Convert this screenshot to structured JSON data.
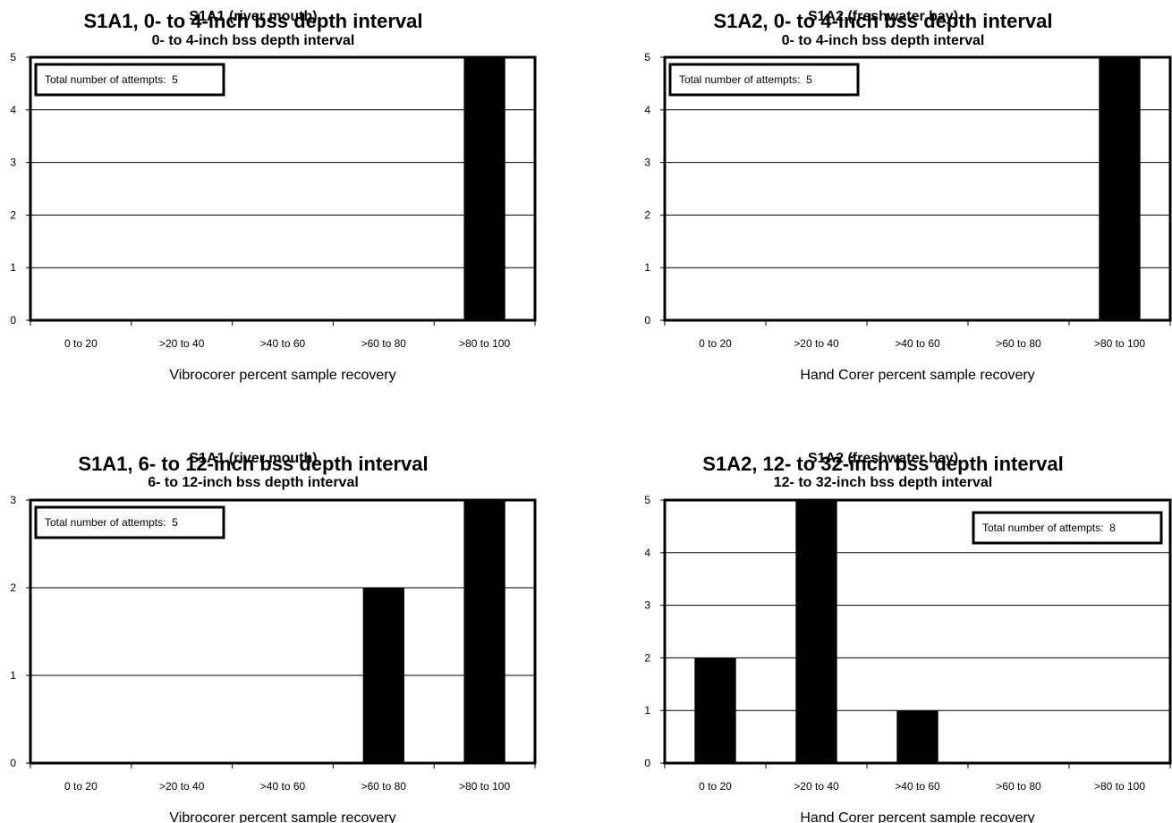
{
  "chart_data": [
    {
      "type": "bar",
      "title": "S1A1, 0- to 4-inch bss depth interval",
      "overlay_title": "S1A1 (river mouth)",
      "subtitle": "0- to 4-inch bss depth interval",
      "categories": [
        "0 to 20",
        ">20 to 40",
        ">40 to 60",
        ">60 to 80",
        ">80 to 100"
      ],
      "values": [
        0,
        0,
        0,
        0,
        5
      ],
      "xlabel": "Vibrocorer percent sample recovery",
      "ylabel": "",
      "ylim": [
        0,
        5
      ],
      "yticks": [
        0,
        1,
        2,
        3,
        4,
        5
      ],
      "grid": true,
      "annotation": "Total number of attempts:  5",
      "annotation_position": "top-left",
      "bar_color": "#000000"
    },
    {
      "type": "bar",
      "title": "S1A2, 0- to 4-inch bss depth interval",
      "overlay_title": "S1A2 (freshwater bay)",
      "subtitle": "0- to 4-inch bss depth interval",
      "categories": [
        "0 to 20",
        ">20 to 40",
        ">40 to 60",
        ">60 to 80",
        ">80 to 100"
      ],
      "values": [
        0,
        0,
        0,
        0,
        5
      ],
      "xlabel": "Hand Corer percent sample recovery",
      "ylabel": "",
      "ylim": [
        0,
        5
      ],
      "yticks": [
        0,
        1,
        2,
        3,
        4,
        5
      ],
      "grid": true,
      "annotation": "Total number of attempts:  5",
      "annotation_position": "top-left",
      "bar_color": "#000000"
    },
    {
      "type": "bar",
      "title": "S1A1, 6- to 12-inch bss depth interval",
      "overlay_title": "S1A1 (river mouth)",
      "subtitle": "6- to 12-inch bss depth interval",
      "categories": [
        "0 to 20",
        ">20 to 40",
        ">40 to 60",
        ">60 to 80",
        ">80 to 100"
      ],
      "values": [
        0,
        0,
        0,
        2,
        3
      ],
      "xlabel": "Vibrocorer percent sample recovery",
      "ylabel": "",
      "ylim": [
        0,
        3
      ],
      "yticks": [
        0,
        1,
        2,
        3
      ],
      "grid": true,
      "annotation": "Total number of attempts:  5",
      "annotation_position": "top-left",
      "bar_color": "#000000"
    },
    {
      "type": "bar",
      "title": "S1A2, 12- to 32-inch bss depth interval",
      "overlay_title": "S1A2 (freshwater bay)",
      "subtitle": "12- to 32-inch bss depth interval",
      "categories": [
        "0 to 20",
        ">20 to 40",
        ">40 to 60",
        ">60 to 80",
        ">80 to 100"
      ],
      "values": [
        2,
        5,
        1,
        0,
        0
      ],
      "xlabel": "Hand Corer percent sample recovery",
      "ylabel": "",
      "ylim": [
        0,
        5
      ],
      "yticks": [
        0,
        1,
        2,
        3,
        4,
        5
      ],
      "grid": true,
      "annotation": "Total number of attempts:  8",
      "annotation_position": "top-right",
      "bar_color": "#000000"
    }
  ]
}
